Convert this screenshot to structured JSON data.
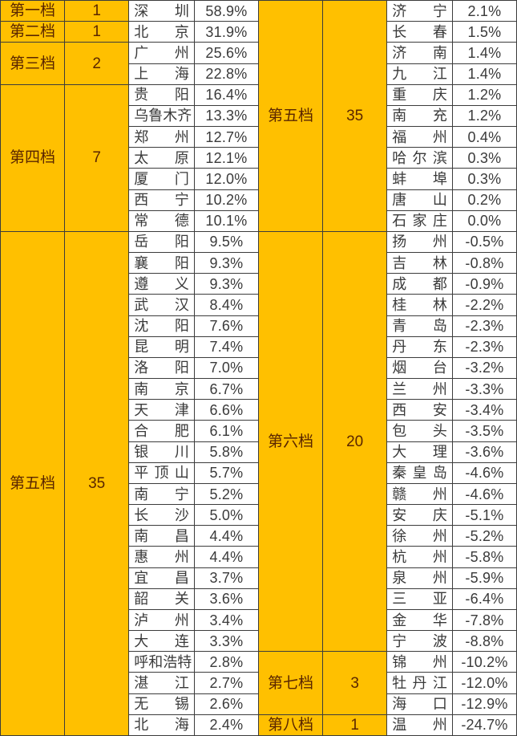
{
  "colors": {
    "tier_fill": "#FFC000",
    "tier_text": "#5A2600",
    "cell_fill": "#FFFFFF",
    "cell_text": "#3A3A3A",
    "grid_line": "#3C3C3C"
  },
  "chart_data": {
    "type": "table",
    "layout": {
      "halves": 2,
      "rows_per_half": 35,
      "columns_per_half": [
        "tier_label",
        "city_count",
        "city_name",
        "percent"
      ],
      "grid": true,
      "tier_cells_span_rows": true
    },
    "halves": [
      {
        "tiers": [
          {
            "label": "第一档",
            "count": "1",
            "cities": [
              {
                "name": "深圳",
                "pct": "58.9%"
              }
            ]
          },
          {
            "label": "第二档",
            "count": "1",
            "cities": [
              {
                "name": "北京",
                "pct": "31.9%"
              }
            ]
          },
          {
            "label": "第三档",
            "count": "2",
            "cities": [
              {
                "name": "广州",
                "pct": "25.6%"
              },
              {
                "name": "上海",
                "pct": "22.8%"
              }
            ]
          },
          {
            "label": "第四档",
            "count": "7",
            "cities": [
              {
                "name": "贵阳",
                "pct": "16.4%"
              },
              {
                "name": "乌鲁木齐",
                "pct": "13.3%"
              },
              {
                "name": "郑州",
                "pct": "12.7%"
              },
              {
                "name": "太原",
                "pct": "12.1%"
              },
              {
                "name": "厦门",
                "pct": "12.0%"
              },
              {
                "name": "西宁",
                "pct": "10.2%"
              },
              {
                "name": "常德",
                "pct": "10.1%"
              }
            ]
          },
          {
            "label": "第五档",
            "count": "35",
            "cities": [
              {
                "name": "岳阳",
                "pct": "9.5%"
              },
              {
                "name": "襄阳",
                "pct": "9.3%"
              },
              {
                "name": "遵义",
                "pct": "9.3%"
              },
              {
                "name": "武汉",
                "pct": "8.4%"
              },
              {
                "name": "沈阳",
                "pct": "7.6%"
              },
              {
                "name": "昆明",
                "pct": "7.4%"
              },
              {
                "name": "洛阳",
                "pct": "7.0%"
              },
              {
                "name": "南京",
                "pct": "6.7%"
              },
              {
                "name": "天津",
                "pct": "6.6%"
              },
              {
                "name": "合肥",
                "pct": "6.1%"
              },
              {
                "name": "银川",
                "pct": "5.8%"
              },
              {
                "name": "平顶山",
                "pct": "5.7%"
              },
              {
                "name": "南宁",
                "pct": "5.2%"
              },
              {
                "name": "长沙",
                "pct": "5.0%"
              },
              {
                "name": "南昌",
                "pct": "4.4%"
              },
              {
                "name": "惠州",
                "pct": "4.4%"
              },
              {
                "name": "宜昌",
                "pct": "3.7%"
              },
              {
                "name": "韶关",
                "pct": "3.6%"
              },
              {
                "name": "泸州",
                "pct": "3.4%"
              },
              {
                "name": "大连",
                "pct": "3.3%"
              },
              {
                "name": "呼和浩特",
                "pct": "2.8%"
              },
              {
                "name": "湛江",
                "pct": "2.7%"
              },
              {
                "name": "无锡",
                "pct": "2.6%"
              },
              {
                "name": "北海",
                "pct": "2.4%"
              }
            ]
          }
        ]
      },
      {
        "tiers": [
          {
            "label": "第五档",
            "count": "35",
            "cities": [
              {
                "name": "济宁",
                "pct": "2.1%"
              },
              {
                "name": "长春",
                "pct": "1.5%"
              },
              {
                "name": "济南",
                "pct": "1.4%"
              },
              {
                "name": "九江",
                "pct": "1.4%"
              },
              {
                "name": "重庆",
                "pct": "1.2%"
              },
              {
                "name": "南充",
                "pct": "1.2%"
              },
              {
                "name": "福州",
                "pct": "0.4%"
              },
              {
                "name": "哈尔滨",
                "pct": "0.3%"
              },
              {
                "name": "蚌埠",
                "pct": "0.3%"
              },
              {
                "name": "唐山",
                "pct": "0.2%"
              },
              {
                "name": "石家庄",
                "pct": "0.0%"
              }
            ]
          },
          {
            "label": "第六档",
            "count": "20",
            "cities": [
              {
                "name": "扬州",
                "pct": "-0.5%"
              },
              {
                "name": "吉林",
                "pct": "-0.8%"
              },
              {
                "name": "成都",
                "pct": "-0.9%"
              },
              {
                "name": "桂林",
                "pct": "-2.2%"
              },
              {
                "name": "青岛",
                "pct": "-2.3%"
              },
              {
                "name": "丹东",
                "pct": "-2.3%"
              },
              {
                "name": "烟台",
                "pct": "-3.2%"
              },
              {
                "name": "兰州",
                "pct": "-3.3%"
              },
              {
                "name": "西安",
                "pct": "-3.4%"
              },
              {
                "name": "包头",
                "pct": "-3.5%"
              },
              {
                "name": "大理",
                "pct": "-3.6%"
              },
              {
                "name": "秦皇岛",
                "pct": "-4.6%"
              },
              {
                "name": "赣州",
                "pct": "-4.6%"
              },
              {
                "name": "安庆",
                "pct": "-5.1%"
              },
              {
                "name": "徐州",
                "pct": "-5.2%"
              },
              {
                "name": "杭州",
                "pct": "-5.8%"
              },
              {
                "name": "泉州",
                "pct": "-5.9%"
              },
              {
                "name": "三亚",
                "pct": "-6.4%"
              },
              {
                "name": "金华",
                "pct": "-7.8%"
              },
              {
                "name": "宁波",
                "pct": "-8.8%"
              }
            ]
          },
          {
            "label": "第七档",
            "count": "3",
            "cities": [
              {
                "name": "锦州",
                "pct": "-10.2%"
              },
              {
                "name": "牡丹江",
                "pct": "-12.0%"
              },
              {
                "name": "海口",
                "pct": "-12.9%"
              }
            ]
          },
          {
            "label": "第八档",
            "count": "1",
            "cities": [
              {
                "name": "温州",
                "pct": "-24.7%"
              }
            ]
          }
        ]
      }
    ]
  }
}
